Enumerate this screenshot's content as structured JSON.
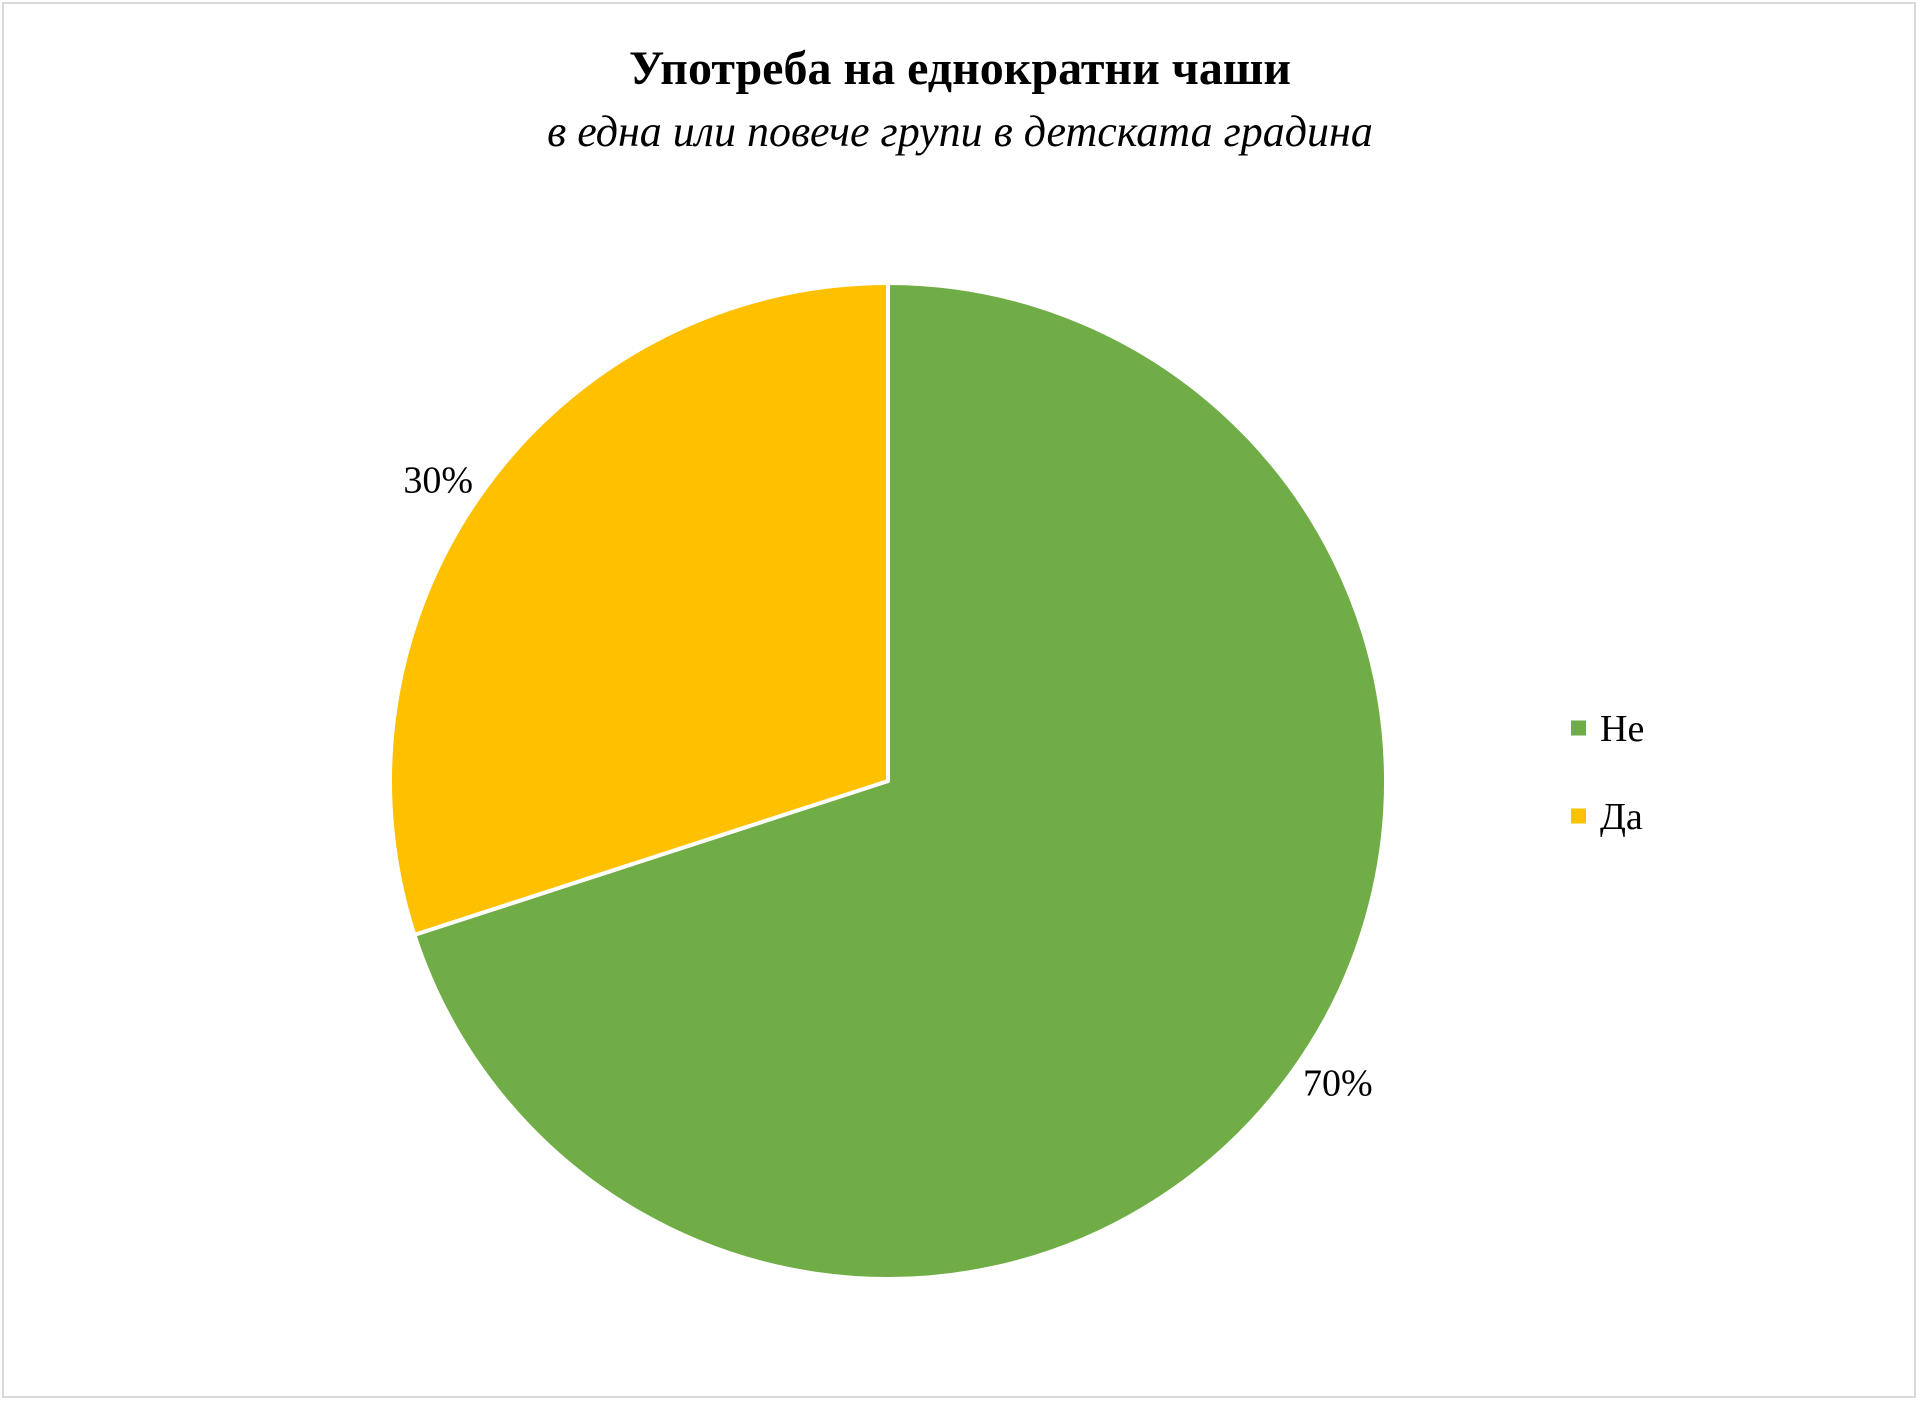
{
  "chart_data": {
    "type": "pie",
    "title": "Употреба на еднократни чаши",
    "subtitle": "в една или повече групи в детската градина",
    "slices": [
      {
        "name": "Не",
        "value": 70,
        "label": "70%",
        "color": "#70AD47"
      },
      {
        "name": "Да",
        "value": 30,
        "label": "30%",
        "color": "#FFC000"
      }
    ],
    "start_angle_deg": 0,
    "direction": "clockwise",
    "legend": {
      "position": "right",
      "entries": [
        "Не",
        "Да"
      ]
    },
    "slice_border_color": "#ffffff"
  }
}
